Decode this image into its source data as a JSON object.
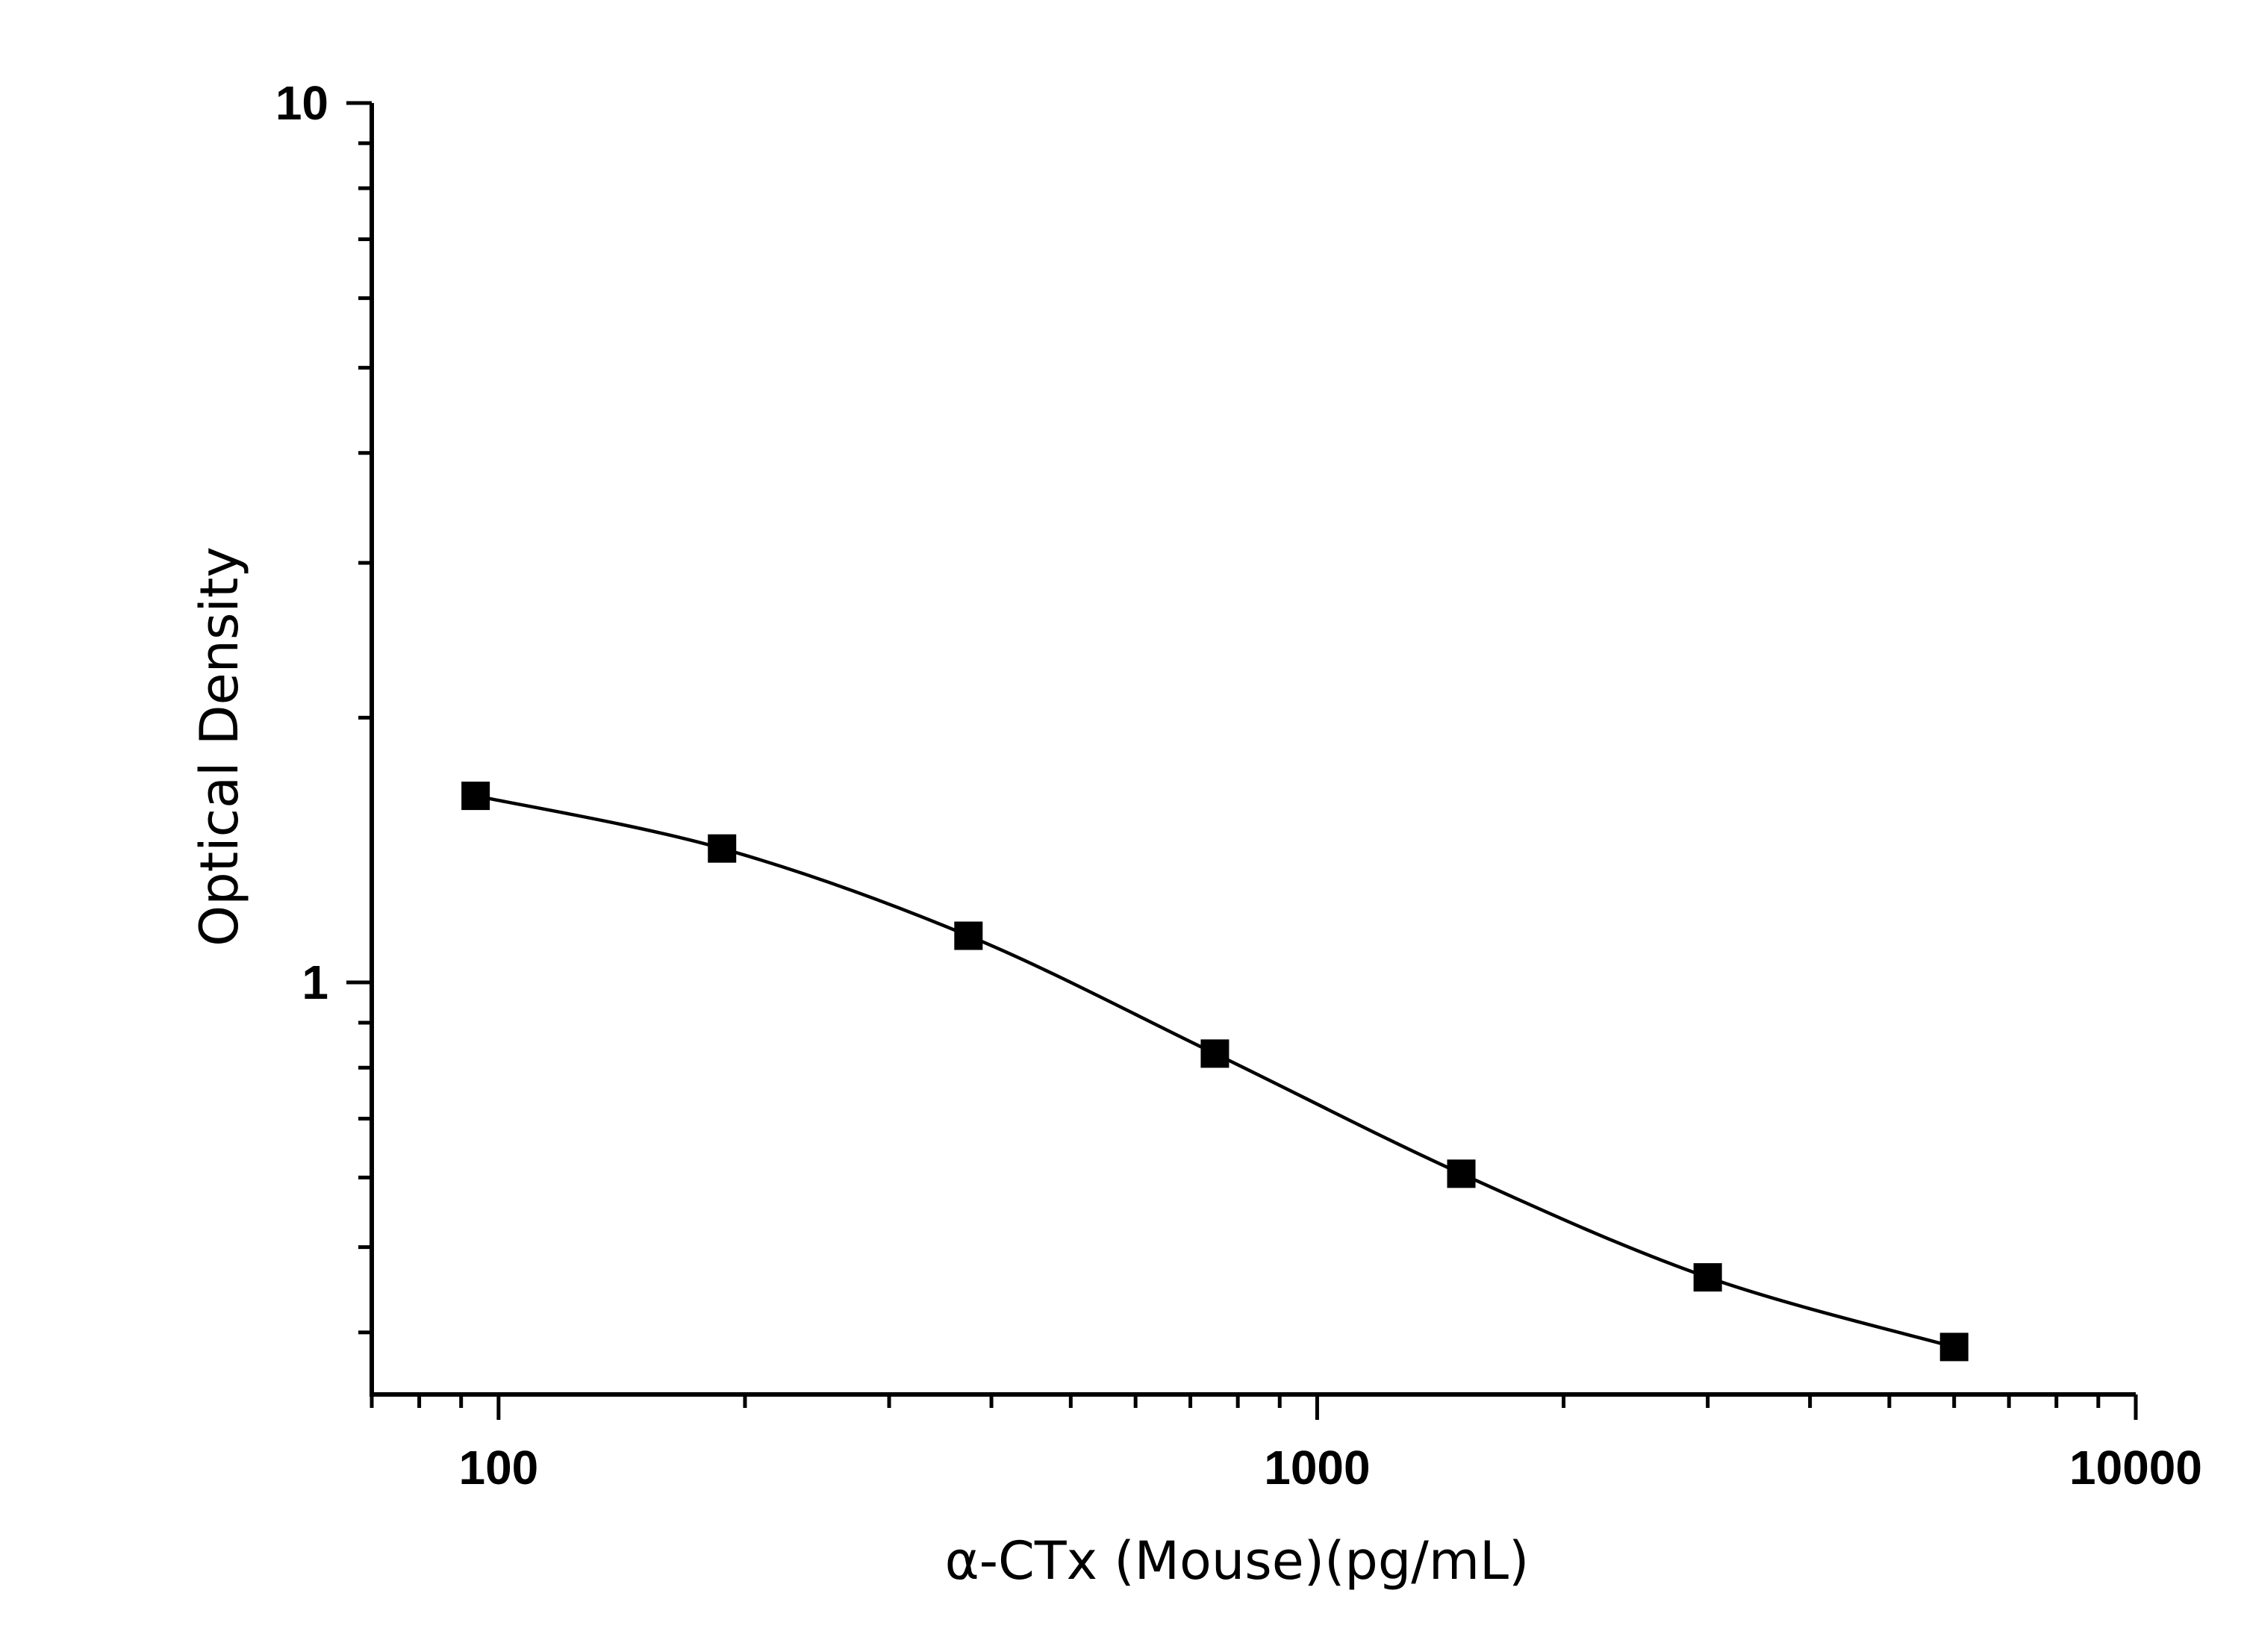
{
  "chart_data": {
    "type": "scatter",
    "xlabel": "α-CTx (Mouse)(pg/mL)",
    "ylabel": "Optical Density",
    "xscale": "log",
    "yscale": "log",
    "xlim": [
      70,
      10000
    ],
    "ylim": [
      0.34,
      10
    ],
    "x_ticks": [
      {
        "value": 100,
        "label": "100"
      },
      {
        "value": 1000,
        "label": "1000"
      },
      {
        "value": 10000,
        "label": "10000"
      }
    ],
    "y_ticks": [
      {
        "value": 1,
        "label": "1"
      },
      {
        "value": 10,
        "label": "10"
      }
    ],
    "series": [
      {
        "x": [
          93.75,
          187.5,
          375,
          750,
          1500,
          3000,
          6000
        ],
        "y": [
          1.63,
          1.42,
          1.13,
          0.83,
          0.606,
          0.462,
          0.385
        ],
        "marker": "square",
        "color": "#000000",
        "fit": "smooth curve"
      }
    ],
    "grid": false,
    "legend": false
  }
}
